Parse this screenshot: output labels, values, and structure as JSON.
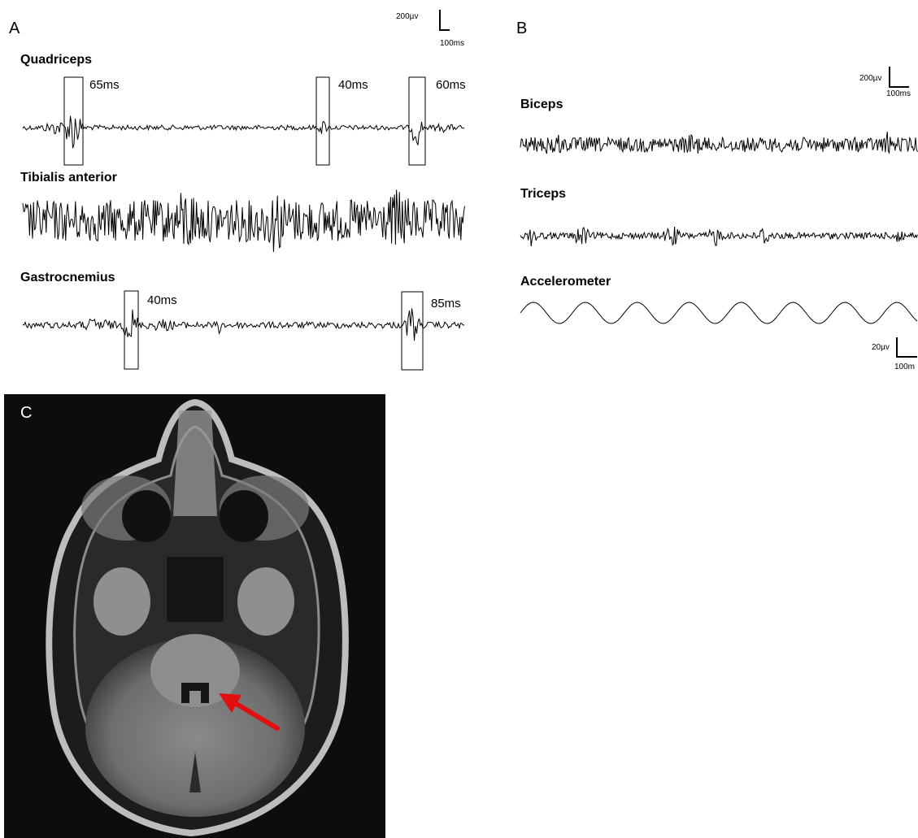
{
  "panel_a": {
    "letter": "A",
    "scale": {
      "vertical": "200µv",
      "horizontal": "100ms"
    },
    "quadriceps": {
      "label": "Quadriceps",
      "latencies": [
        "65ms",
        "40ms",
        "60ms"
      ]
    },
    "tibialis": {
      "label": "Tibialis anterior"
    },
    "gastrocnemius": {
      "label": "Gastrocnemius",
      "latencies": [
        "40ms",
        "85ms"
      ]
    }
  },
  "panel_b": {
    "letter": "B",
    "scale_top": {
      "vertical": "200µv",
      "horizontal": "100ms"
    },
    "biceps": {
      "label": "Biceps"
    },
    "triceps": {
      "label": "Triceps"
    },
    "accelerometer": {
      "label": "Accelerometer"
    },
    "scale_bottom": {
      "vertical": "20µv",
      "horizontal": "100m"
    }
  },
  "panel_c": {
    "letter": "C",
    "arrow_color": "#e01010"
  }
}
